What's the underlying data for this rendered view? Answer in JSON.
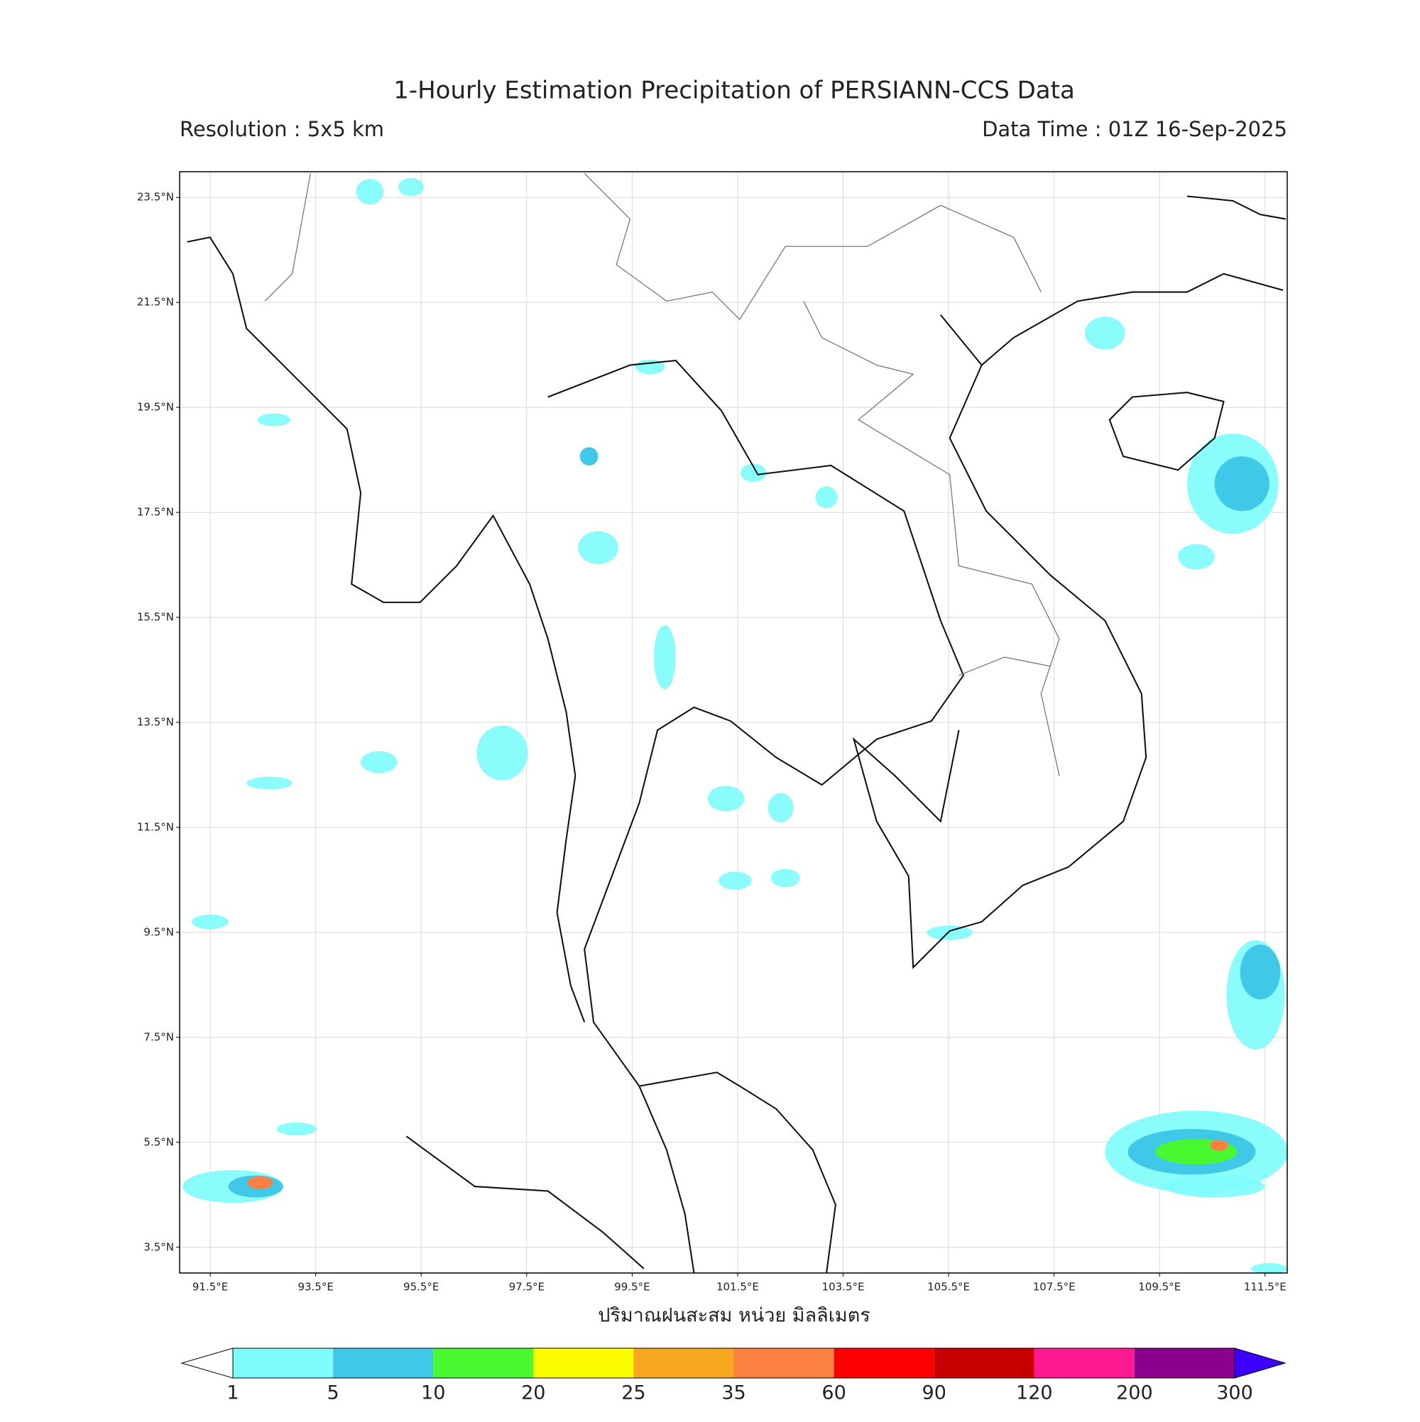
{
  "header": {
    "title": "1-Hourly Estimation Precipitation of PERSIANN-CCS Data",
    "resolution": "Resolution : 5x5 km",
    "data_time": "Data Time : 01Z 16-Sep-2025"
  },
  "map": {
    "xlim": [
      90.92,
      111.92
    ],
    "ylim": [
      3.01,
      23.99
    ],
    "xticks": [
      {
        "value": 91.5,
        "label": "91.5°E"
      },
      {
        "value": 93.5,
        "label": "93.5°E"
      },
      {
        "value": 95.5,
        "label": "95.5°E"
      },
      {
        "value": 97.5,
        "label": "97.5°E"
      },
      {
        "value": 99.5,
        "label": "99.5°E"
      },
      {
        "value": 101.5,
        "label": "101.5°E"
      },
      {
        "value": 103.5,
        "label": "103.5°E"
      },
      {
        "value": 105.5,
        "label": "105.5°E"
      },
      {
        "value": 107.5,
        "label": "107.5°E"
      },
      {
        "value": 109.5,
        "label": "109.5°E"
      },
      {
        "value": 111.5,
        "label": "111.5°E"
      }
    ],
    "yticks": [
      {
        "value": 23.5,
        "label": "23.5°N"
      },
      {
        "value": 21.5,
        "label": "21.5°N"
      },
      {
        "value": 19.5,
        "label": "19.5°N"
      },
      {
        "value": 17.5,
        "label": "17.5°N"
      },
      {
        "value": 15.5,
        "label": "15.5°N"
      },
      {
        "value": 13.5,
        "label": "13.5°N"
      },
      {
        "value": 11.5,
        "label": "11.5°N"
      },
      {
        "value": 9.5,
        "label": "9.5°N"
      },
      {
        "value": 7.5,
        "label": "7.5°N"
      },
      {
        "value": 5.5,
        "label": "5.5°N"
      },
      {
        "value": 3.5,
        "label": "3.5°N"
      }
    ],
    "xlabel": "ปริมาณฝนสะสม หน่วย มิลลิเมตร"
  },
  "colorbar": {
    "levels": [
      1,
      5,
      10,
      20,
      25,
      35,
      60,
      90,
      120,
      200,
      300
    ],
    "colors": [
      "#7efcfc",
      "#40c8e8",
      "#48f830",
      "#fcfc00",
      "#f8a820",
      "#fc8040",
      "#fc0000",
      "#c80000",
      "#fc1890",
      "#8c0090",
      "#3c00fc"
    ]
  }
}
